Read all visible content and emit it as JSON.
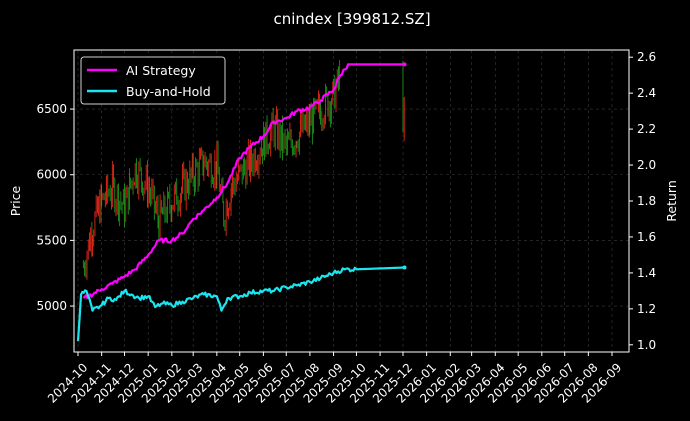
{
  "chart_data": {
    "type": "line",
    "title": "cnindex [399812.SZ]",
    "ylabel_left": "Price",
    "ylabel_right": "Return",
    "ylim_left": [
      4650,
      6950
    ],
    "ylim_right": [
      0.96,
      2.64
    ],
    "yticks_left": [
      "5000",
      "5500",
      "6000",
      "6500"
    ],
    "yticks_right": [
      "1.0",
      "1.2",
      "1.4",
      "1.6",
      "1.8",
      "2.0",
      "2.2",
      "2.4",
      "2.6"
    ],
    "xticks": [
      "2024-10",
      "2024-11",
      "2024-12",
      "2025-01",
      "2025-02",
      "2025-03",
      "2025-04",
      "2025-05",
      "2025-06",
      "2025-07",
      "2025-08",
      "2025-09",
      "2025-10",
      "2025-11",
      "2025-12",
      "2026-01",
      "2026-02",
      "2026-03",
      "2026-04",
      "2026-05",
      "2026-06",
      "2026-07",
      "2026-08",
      "2026-09"
    ],
    "grid": true,
    "legend_position": "top-left",
    "colors": {
      "up": "#ff2a1a",
      "down": "#1fa51f",
      "ai": "#ff00ff",
      "bh": "#19e6f0",
      "grid": "#3a3a3a"
    },
    "price_candles": {
      "note": "dates, close price",
      "dates": [
        "2024-10-08",
        "2024-10-20",
        "2024-11-01",
        "2024-11-15",
        "2024-12-01",
        "2024-12-15",
        "2025-01-01",
        "2025-01-15",
        "2025-02-01",
        "2025-02-15",
        "2025-03-01",
        "2025-03-15",
        "2025-04-01",
        "2025-04-10",
        "2025-04-20",
        "2025-05-01",
        "2025-05-15",
        "2025-06-01",
        "2025-06-15",
        "2025-07-01",
        "2025-07-15",
        "2025-08-01",
        "2025-08-15",
        "2025-09-01",
        "2025-09-10",
        "2025-12-01",
        "2025-12-04"
      ],
      "close": [
        5300,
        5600,
        5800,
        5900,
        5750,
        6050,
        5900,
        5650,
        5800,
        5900,
        6000,
        6100,
        6050,
        5700,
        5900,
        6000,
        6100,
        6250,
        6350,
        6200,
        6300,
        6400,
        6500,
        6600,
        6750,
        6450,
        6400
      ]
    },
    "series": [
      {
        "name": "AI Strategy",
        "x": [
          "2024-10-08",
          "2024-10-15",
          "2024-11-01",
          "2024-11-15",
          "2024-12-01",
          "2024-12-15",
          "2025-01-01",
          "2025-01-15",
          "2025-02-01",
          "2025-02-15",
          "2025-03-01",
          "2025-03-15",
          "2025-04-01",
          "2025-04-15",
          "2025-05-01",
          "2025-05-15",
          "2025-06-01",
          "2025-06-15",
          "2025-07-01",
          "2025-07-15",
          "2025-08-01",
          "2025-08-15",
          "2025-09-01",
          "2025-09-10",
          "2025-09-20",
          "2025-12-03"
        ],
        "values": [
          1.26,
          1.27,
          1.31,
          1.34,
          1.38,
          1.42,
          1.5,
          1.58,
          1.58,
          1.62,
          1.7,
          1.75,
          1.82,
          1.9,
          2.04,
          2.1,
          2.16,
          2.24,
          2.26,
          2.3,
          2.32,
          2.36,
          2.42,
          2.5,
          2.56,
          2.56
        ]
      },
      {
        "name": "Buy-and-Hold",
        "x": [
          "2024-10-01",
          "2024-10-05",
          "2024-10-12",
          "2024-10-20",
          "2024-11-01",
          "2024-11-10",
          "2024-11-20",
          "2024-12-01",
          "2024-12-10",
          "2024-12-20",
          "2025-01-01",
          "2025-01-10",
          "2025-01-20",
          "2025-02-01",
          "2025-02-15",
          "2025-03-01",
          "2025-03-15",
          "2025-04-01",
          "2025-04-07",
          "2025-04-15",
          "2025-05-01",
          "2025-05-15",
          "2025-06-01",
          "2025-06-15",
          "2025-07-01",
          "2025-07-15",
          "2025-08-01",
          "2025-08-15",
          "2025-09-01",
          "2025-09-15",
          "2025-10-01",
          "2025-12-03"
        ],
        "values": [
          1.02,
          1.28,
          1.3,
          1.19,
          1.22,
          1.26,
          1.25,
          1.3,
          1.28,
          1.26,
          1.27,
          1.21,
          1.23,
          1.22,
          1.24,
          1.26,
          1.28,
          1.27,
          1.19,
          1.26,
          1.27,
          1.29,
          1.3,
          1.3,
          1.32,
          1.33,
          1.35,
          1.37,
          1.4,
          1.42,
          1.42,
          1.43
        ]
      }
    ]
  }
}
